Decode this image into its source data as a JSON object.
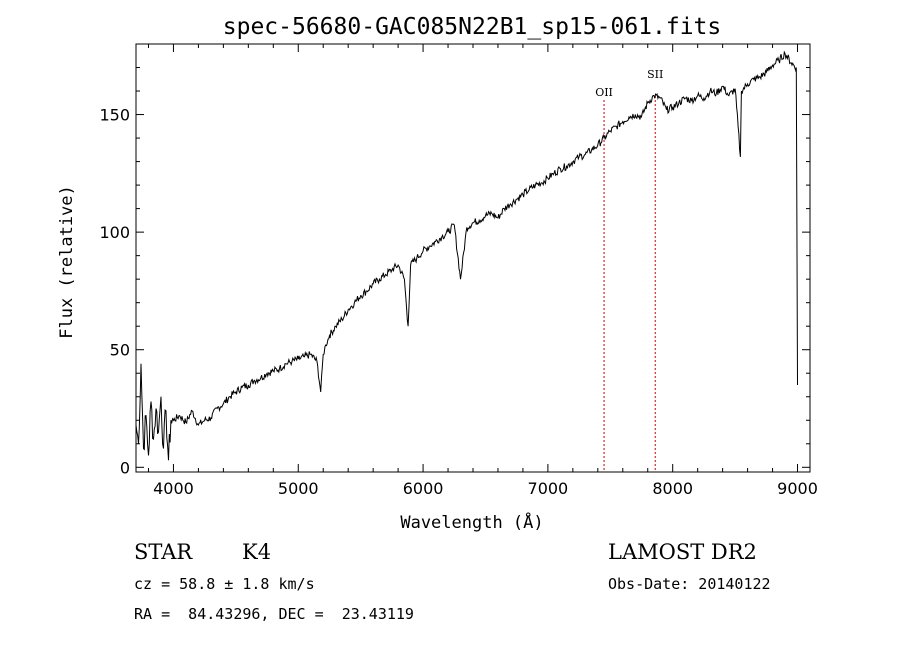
{
  "chart_data": {
    "type": "line",
    "title": "spec-56680-GAC085N22B1_sp15-061.fits",
    "xlabel": "Wavelength (Å)",
    "ylabel": "Flux (relative)",
    "xlim": [
      3700,
      9100
    ],
    "ylim": [
      -2,
      180
    ],
    "xticks": [
      4000,
      5000,
      6000,
      7000,
      8000,
      9000
    ],
    "xtick_labels": [
      "4000",
      "5000",
      "6000",
      "7000",
      "8000",
      "9000"
    ],
    "yticks": [
      0,
      50,
      100,
      150
    ],
    "ytick_labels": [
      "0",
      "50",
      "100",
      "150"
    ],
    "grid": false,
    "series": [
      {
        "x": [
          3700,
          3720,
          3740,
          3760,
          3780,
          3800,
          3820,
          3840,
          3860,
          3880,
          3900,
          3920,
          3940,
          3960,
          3980,
          4000,
          4050,
          4100,
          4150,
          4200,
          4250,
          4300,
          4350,
          4400,
          4450,
          4500,
          4550,
          4600,
          4650,
          4700,
          4750,
          4800,
          4850,
          4900,
          4950,
          5000,
          5050,
          5100,
          5150,
          5180,
          5200,
          5220,
          5250,
          5300,
          5350,
          5400,
          5450,
          5500,
          5550,
          5600,
          5650,
          5700,
          5750,
          5800,
          5850,
          5880,
          5900,
          5950,
          6000,
          6050,
          6100,
          6150,
          6200,
          6250,
          6300,
          6350,
          6400,
          6450,
          6500,
          6550,
          6600,
          6650,
          6700,
          6750,
          6800,
          6850,
          6900,
          6950,
          7000,
          7050,
          7100,
          7150,
          7200,
          7250,
          7300,
          7350,
          7400,
          7450,
          7500,
          7550,
          7600,
          7650,
          7700,
          7750,
          7800,
          7850,
          7900,
          7950,
          8000,
          8050,
          8100,
          8150,
          8200,
          8250,
          8300,
          8350,
          8400,
          8450,
          8500,
          8542,
          8550,
          8600,
          8650,
          8700,
          8750,
          8800,
          8850,
          8900,
          8950,
          8990,
          9000
        ],
        "values": [
          18,
          10,
          44,
          8,
          22,
          5,
          28,
          12,
          25,
          15,
          30,
          8,
          24,
          3,
          20,
          20,
          22,
          19,
          24,
          18,
          20,
          21,
          25,
          27,
          30,
          32,
          34,
          35,
          37,
          38,
          40,
          41,
          42,
          44,
          45,
          46,
          47,
          48,
          45,
          32,
          48,
          52,
          56,
          60,
          63,
          67,
          70,
          73,
          75,
          78,
          80,
          82,
          84,
          86,
          80,
          60,
          86,
          89,
          92,
          94,
          96,
          98,
          100,
          103,
          80,
          102,
          104,
          105,
          107,
          108,
          106,
          110,
          112,
          114,
          116,
          118,
          120,
          121,
          123,
          125,
          127,
          128,
          130,
          132,
          133,
          135,
          137,
          140,
          143,
          145,
          147,
          149,
          150,
          149,
          155,
          158,
          157,
          152,
          153,
          155,
          157,
          156,
          158,
          157,
          160,
          159,
          162,
          158,
          161,
          132,
          160,
          163,
          165,
          166,
          168,
          171,
          173,
          176,
          172,
          170,
          35
        ],
        "stroke": "#000000"
      }
    ],
    "lines": [
      {
        "label": "OII",
        "x": 7450,
        "color": "#cc0000"
      },
      {
        "label": "SII",
        "x": 7860,
        "color": "#cc0000"
      }
    ],
    "info": {
      "obj_type": "STAR",
      "subclass": "K4",
      "survey": "LAMOST DR2",
      "cz": "cz = 58.8 ± 1.8 km/s",
      "obs_date": "Obs-Date: 20140122",
      "coords": "RA =  84.43296, DEC =  23.43119"
    }
  }
}
